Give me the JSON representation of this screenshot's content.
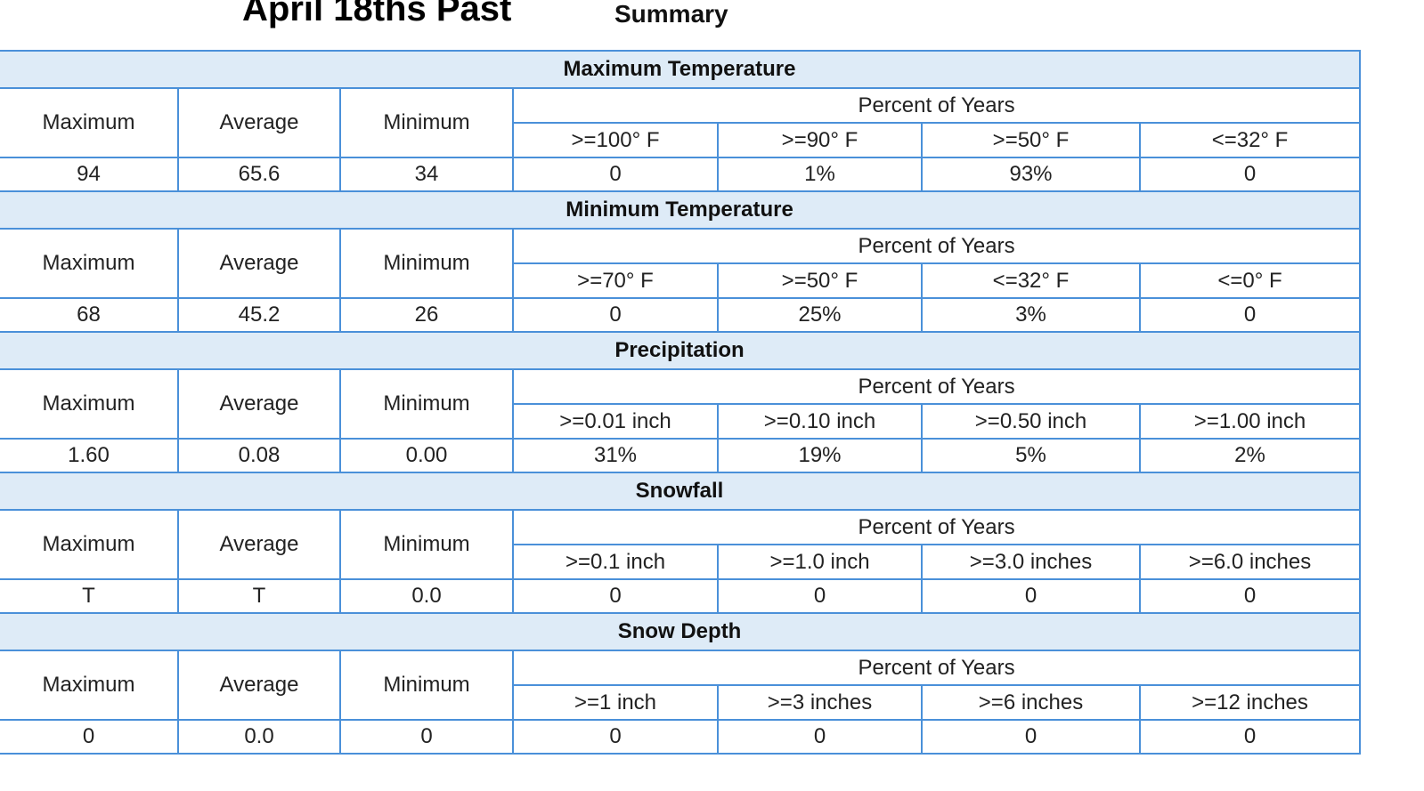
{
  "title": "April 18ths Past",
  "subtitle": "Summary",
  "col_labels": {
    "maximum": "Maximum",
    "average": "Average",
    "minimum": "Minimum",
    "percent_of_years": "Percent of Years"
  },
  "sections": [
    {
      "name": "Maximum Temperature",
      "thresholds": [
        ">=100° F",
        ">=90° F",
        ">=50° F",
        "<=32° F"
      ],
      "values": {
        "maximum": "94",
        "average": "65.6",
        "minimum": "34"
      },
      "percents": [
        "0",
        "1%",
        "93%",
        "0"
      ]
    },
    {
      "name": "Minimum Temperature",
      "thresholds": [
        ">=70° F",
        ">=50° F",
        "<=32° F",
        "<=0° F"
      ],
      "values": {
        "maximum": "68",
        "average": "45.2",
        "minimum": "26"
      },
      "percents": [
        "0",
        "25%",
        "3%",
        "0"
      ]
    },
    {
      "name": "Precipitation",
      "thresholds": [
        ">=0.01 inch",
        ">=0.10 inch",
        ">=0.50 inch",
        ">=1.00 inch"
      ],
      "values": {
        "maximum": "1.60",
        "average": "0.08",
        "minimum": "0.00"
      },
      "percents": [
        "31%",
        "19%",
        "5%",
        "2%"
      ]
    },
    {
      "name": "Snowfall",
      "thresholds": [
        ">=0.1 inch",
        ">=1.0 inch",
        ">=3.0 inches",
        ">=6.0 inches"
      ],
      "values": {
        "maximum": "T",
        "average": "T",
        "minimum": "0.0"
      },
      "percents": [
        "0",
        "0",
        "0",
        "0"
      ]
    },
    {
      "name": "Snow Depth",
      "thresholds": [
        ">=1 inch",
        ">=3 inches",
        ">=6 inches",
        ">=12 inches"
      ],
      "values": {
        "maximum": "0",
        "average": "0.0",
        "minimum": "0"
      },
      "percents": [
        "0",
        "0",
        "0",
        "0"
      ]
    }
  ]
}
